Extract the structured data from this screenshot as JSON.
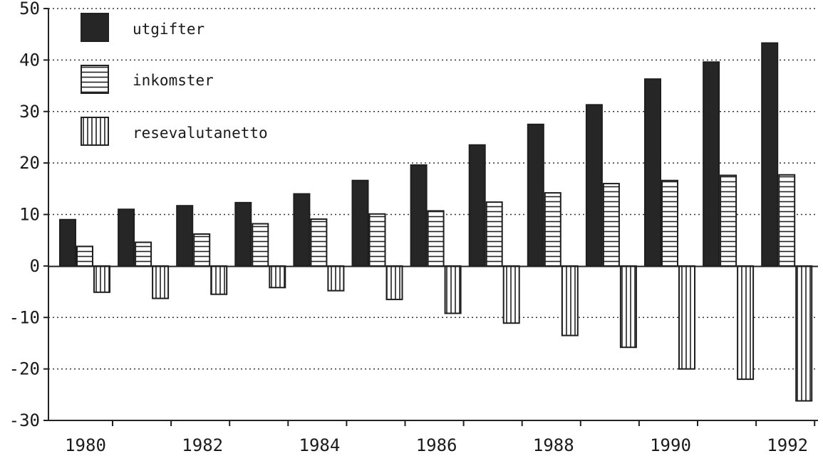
{
  "chart_data": {
    "type": "bar",
    "categories": [
      "1980",
      "1981",
      "1982",
      "1983",
      "1984",
      "1985",
      "1986",
      "1987",
      "1988",
      "1989",
      "1990",
      "1991",
      "1992"
    ],
    "x_tick_labels": [
      "1980",
      "1982",
      "1984",
      "1986",
      "1988",
      "1990",
      "1992"
    ],
    "y_tick_labels": [
      "-30",
      "-20",
      "-10",
      "0",
      "10",
      "20",
      "30",
      "40",
      "50"
    ],
    "ylim": [
      -30,
      50
    ],
    "y_ticks": [
      -30,
      -20,
      -10,
      0,
      10,
      20,
      30,
      40,
      50
    ],
    "grid": true,
    "legend_position": "top-left",
    "series": [
      {
        "name": "utgifter",
        "values": [
          9,
          11,
          11.7,
          12.3,
          14,
          16.6,
          19.6,
          23.5,
          27.5,
          31.3,
          36.3,
          39.6,
          43.3
        ],
        "pattern": "dark"
      },
      {
        "name": "inkomster",
        "values": [
          3.8,
          4.6,
          6.2,
          8.2,
          9.1,
          10.1,
          10.7,
          12.4,
          14.2,
          16,
          16.6,
          17.6,
          17.7
        ],
        "pattern": "horizontal"
      },
      {
        "name": "resevalutanetto",
        "values": [
          -5.1,
          -6.3,
          -5.5,
          -4.2,
          -4.8,
          -6.5,
          -9.2,
          -11.1,
          -13.5,
          -15.8,
          -20,
          -22,
          -26.2
        ],
        "pattern": "vertical"
      }
    ]
  }
}
